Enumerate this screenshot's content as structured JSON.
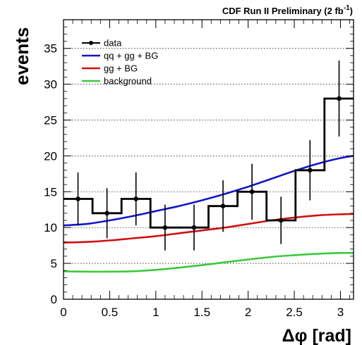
{
  "chart_data": {
    "type": "line",
    "title": "CDF Run II Preliminary (2 fb",
    "title_superscript": "-1",
    "title_close": ")",
    "xlabel": "Δφ [rad]",
    "ylabel": "events",
    "xlim": [
      0,
      3.14159
    ],
    "ylim": [
      0,
      39
    ],
    "x_ticks": [
      0,
      0.5,
      1,
      1.5,
      2,
      2.5,
      3
    ],
    "x_tick_labels": [
      "0",
      "0.5",
      "1",
      "1.5",
      "2",
      "2.5",
      "3"
    ],
    "y_ticks": [
      0,
      5,
      10,
      15,
      20,
      25,
      30,
      35
    ],
    "y_tick_labels": [
      "0",
      "5",
      "10",
      "15",
      "20",
      "25",
      "30",
      "35"
    ],
    "grid": "horizontal dotted",
    "legend_position": "top-left",
    "data": {
      "name": "data",
      "bin_edges": [
        0,
        0.314,
        0.628,
        0.942,
        1.257,
        1.571,
        1.885,
        2.199,
        2.513,
        2.827,
        3.14159
      ],
      "x": [
        0.157,
        0.471,
        0.785,
        1.1,
        1.414,
        1.728,
        2.042,
        2.356,
        2.67,
        2.985
      ],
      "y": [
        14,
        12,
        14,
        10,
        10,
        13,
        15,
        11,
        18,
        28
      ],
      "err": [
        3.7,
        3.5,
        3.7,
        3.2,
        3.2,
        3.6,
        3.9,
        3.3,
        4.2,
        5.3
      ],
      "color": "#000000"
    },
    "series": [
      {
        "name": "qq + gg + BG",
        "color": "#1515c8",
        "x": [
          0,
          0.25,
          0.5,
          0.75,
          1.0,
          1.25,
          1.5,
          1.75,
          2.0,
          2.25,
          2.5,
          2.75,
          3.0,
          3.14
        ],
        "y": [
          10.3,
          10.5,
          11.0,
          11.6,
          12.3,
          13.0,
          13.8,
          14.7,
          15.7,
          16.8,
          17.9,
          18.9,
          19.7,
          20.0
        ]
      },
      {
        "name": "gg + BG",
        "color": "#d01010",
        "x": [
          0,
          0.25,
          0.5,
          0.75,
          1.0,
          1.25,
          1.5,
          1.75,
          2.0,
          2.25,
          2.5,
          2.75,
          3.0,
          3.14
        ],
        "y": [
          7.9,
          8.0,
          8.2,
          8.5,
          8.8,
          9.2,
          9.6,
          10.0,
          10.5,
          11.0,
          11.4,
          11.7,
          11.85,
          11.9
        ]
      },
      {
        "name": "background",
        "color": "#3cc83c",
        "x": [
          0,
          0.25,
          0.5,
          0.75,
          1.0,
          1.25,
          1.5,
          1.75,
          2.0,
          2.25,
          2.5,
          2.75,
          3.0,
          3.14
        ],
        "y": [
          3.9,
          3.85,
          3.85,
          3.9,
          4.1,
          4.4,
          4.75,
          5.15,
          5.55,
          5.9,
          6.15,
          6.35,
          6.45,
          6.45
        ]
      }
    ]
  }
}
